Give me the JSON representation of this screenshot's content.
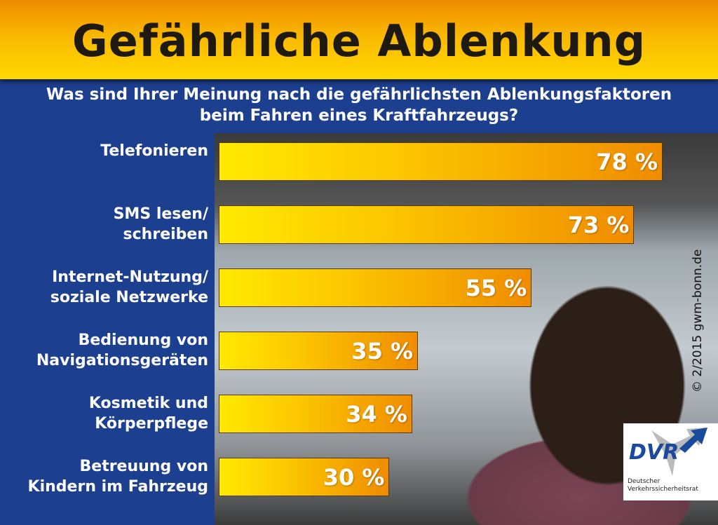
{
  "header": {
    "title": "Gefährliche Ablenkung"
  },
  "colors": {
    "background": "#1d3f8f",
    "bar_start": "#ffea00",
    "bar_end": "#ef8c00"
  },
  "chart_data": {
    "type": "bar",
    "orientation": "horizontal",
    "title": "Gefährliche Ablenkung",
    "subtitle": "Was sind Ihrer Meinung nach die gefährlichsten Ablenkungsfaktoren beim Fahren eines Kraftfahrzeugs?",
    "subtitle_lines": [
      "Was sind Ihrer Meinung nach die gefährlichsten Ablenkungsfaktoren",
      "beim Fahren eines Kraftfahrzeugs?"
    ],
    "categories": [
      [
        "Telefonieren"
      ],
      [
        "SMS lesen/",
        "schreiben"
      ],
      [
        "Internet-Nutzung/",
        "soziale Netzwerke"
      ],
      [
        "Bedienung von",
        "Navigationsgeräten"
      ],
      [
        "Kosmetik und",
        "Körperpflege"
      ],
      [
        "Betreuung von",
        "Kindern im Fahrzeug"
      ]
    ],
    "values": [
      78,
      73,
      55,
      35,
      34,
      30
    ],
    "value_labels": [
      "78 %",
      "73 %",
      "55 %",
      "35 %",
      "34 %",
      "30 %"
    ],
    "unit": "%",
    "grid": false
  },
  "footer": {
    "copyright": "© 2/2015 gwm-bonn.de",
    "logo_text": "DVR",
    "logo_sub": [
      "Deutscher",
      "Verkehrssicherheitsrat"
    ]
  }
}
